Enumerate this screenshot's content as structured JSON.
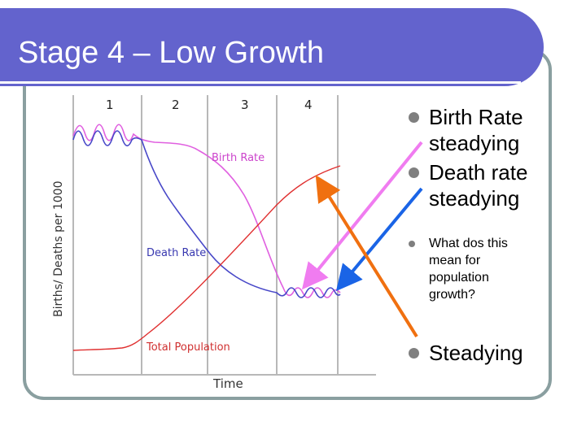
{
  "slide": {
    "title": "Stage 4 – Low Growth"
  },
  "bullets": [
    {
      "text": "Birth Rate steadying"
    },
    {
      "text": "Death rate steadying"
    },
    {
      "text": "What dos this mean for population growth?"
    },
    {
      "text": "Steadying"
    }
  ],
  "chart_data": {
    "type": "line",
    "title": "",
    "xlabel": "Time",
    "ylabel": "Births/ Deaths per 1000",
    "stage_labels": [
      "1",
      "2",
      "3",
      "4"
    ],
    "series": [
      {
        "name": "Birth Rate",
        "color": "#e060e0"
      },
      {
        "name": "Death Rate",
        "color": "#4848c8"
      },
      {
        "name": "Total Population",
        "color": "#e03030"
      }
    ],
    "arrow_colors": [
      "#f07cf0",
      "#1a64e6",
      "#f07010"
    ]
  }
}
